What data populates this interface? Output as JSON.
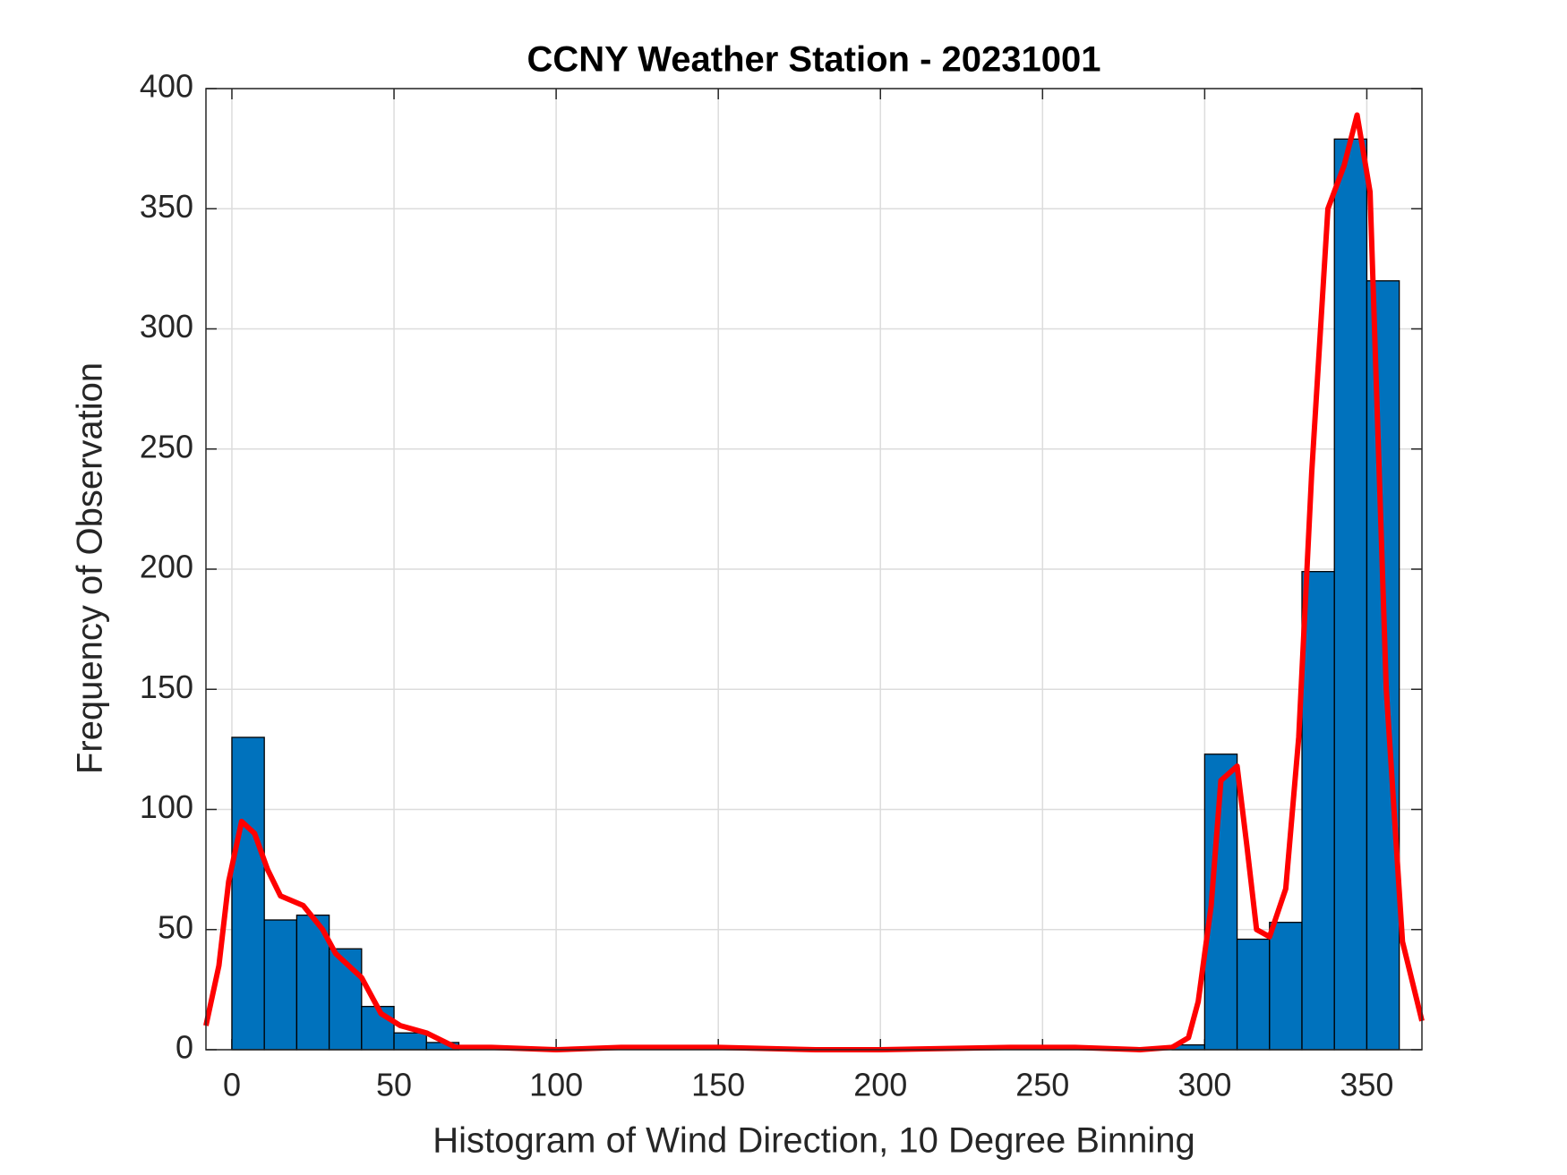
{
  "chart_data": {
    "type": "histogram",
    "title": "CCNY Weather Station - 20231001",
    "xlabel": "Histogram of Wind Direction, 10 Degree Binning",
    "ylabel": "Frequency of Observation",
    "bins": [
      0,
      10,
      20,
      30,
      40,
      50,
      60,
      70,
      80,
      90,
      100,
      110,
      120,
      130,
      140,
      150,
      160,
      170,
      180,
      190,
      200,
      210,
      220,
      230,
      240,
      250,
      260,
      270,
      280,
      290,
      300,
      310,
      320,
      330,
      340,
      350,
      360
    ],
    "counts": [
      130,
      54,
      56,
      42,
      18,
      7,
      3,
      0,
      0,
      0,
      0,
      0,
      0,
      0,
      0,
      0,
      0,
      0,
      0,
      0,
      0,
      0,
      0,
      0,
      0,
      0,
      0,
      0,
      0,
      2,
      123,
      46,
      53,
      199,
      379,
      320
    ],
    "color": "#0072bd",
    "curve": {
      "color": "#ff0000",
      "x": [
        -8,
        -4,
        -1,
        3,
        7,
        11,
        15,
        22,
        28,
        32,
        40,
        46,
        52,
        60,
        69,
        80,
        100,
        120,
        150,
        180,
        200,
        240,
        260,
        280,
        290,
        295,
        298,
        302,
        305,
        310,
        313,
        316,
        320,
        325,
        329,
        333,
        338,
        343,
        347,
        351,
        356,
        361,
        367
      ],
      "y": [
        10,
        35,
        70,
        95,
        90,
        75,
        64,
        60,
        50,
        40,
        30,
        15,
        10,
        7,
        1,
        1,
        0,
        1,
        1,
        0,
        0,
        1,
        1,
        0,
        1,
        5,
        20,
        60,
        112,
        118,
        85,
        50,
        47,
        67,
        130,
        240,
        350,
        368,
        389,
        357,
        150,
        45,
        12
      ]
    },
    "xlim": [
      -8,
      367
    ],
    "ylim": [
      0,
      400
    ],
    "xticks": [
      0,
      50,
      100,
      150,
      200,
      250,
      300,
      350
    ],
    "yticks": [
      0,
      50,
      100,
      150,
      200,
      250,
      300,
      350,
      400
    ],
    "grid": true
  }
}
